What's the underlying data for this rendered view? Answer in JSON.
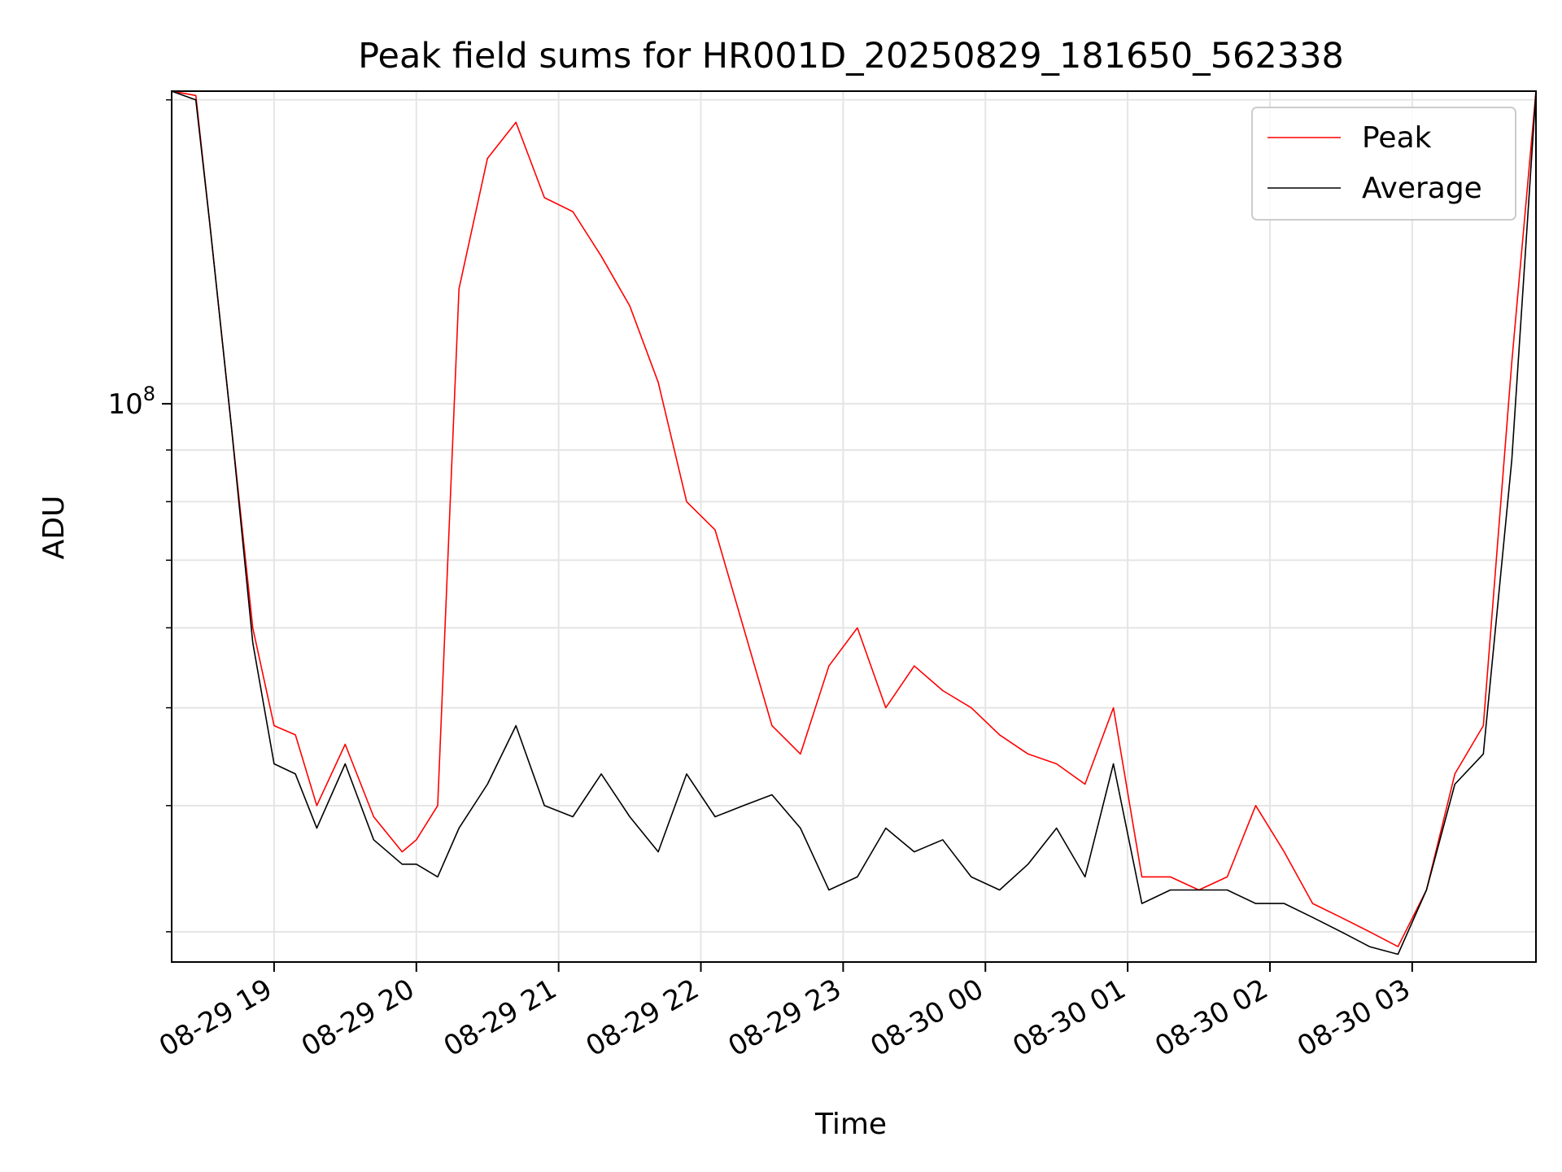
{
  "chart_data": {
    "type": "line",
    "title": "Peak field sums for HR001D_20250829_181650_562338",
    "xlabel": "Time",
    "ylabel": "ADU",
    "yscale": "log",
    "ylim": [
      28000000,
      204000000
    ],
    "xlim_hours": [
      18.28,
      27.87
    ],
    "x_ticks": [
      {
        "label": "08-29 19",
        "hour": 19
      },
      {
        "label": "08-29 20",
        "hour": 20
      },
      {
        "label": "08-29 21",
        "hour": 21
      },
      {
        "label": "08-29 22",
        "hour": 22
      },
      {
        "label": "08-29 23",
        "hour": 23
      },
      {
        "label": "08-30 00",
        "hour": 24
      },
      {
        "label": "08-30 01",
        "hour": 25
      },
      {
        "label": "08-30 02",
        "hour": 26
      },
      {
        "label": "08-30 03",
        "hour": 27
      }
    ],
    "y_major_ticks": [
      {
        "base": "10",
        "exp": "8",
        "value": 100000000
      }
    ],
    "y_minor_ticks": [
      30000000,
      40000000,
      50000000,
      60000000,
      70000000,
      80000000,
      90000000,
      200000000
    ],
    "grid": true,
    "legend_position": "upper-right",
    "series": [
      {
        "name": "Peak",
        "color": "#ff0000",
        "x_hours": [
          18.28,
          18.45,
          18.55,
          18.7,
          18.85,
          19.0,
          19.15,
          19.3,
          19.5,
          19.7,
          19.9,
          20.0,
          20.15,
          20.3,
          20.5,
          20.7,
          20.9,
          21.1,
          21.3,
          21.5,
          21.7,
          21.9,
          22.1,
          22.3,
          22.5,
          22.7,
          22.9,
          23.1,
          23.3,
          23.5,
          23.7,
          23.9,
          24.1,
          24.3,
          24.5,
          24.7,
          24.9,
          25.1,
          25.3,
          25.5,
          25.7,
          25.9,
          26.1,
          26.3,
          26.5,
          26.7,
          26.9,
          27.1,
          27.3,
          27.5,
          27.7,
          27.87
        ],
        "values": [
          204000000,
          202000000,
          150000000,
          95000000,
          60000000,
          48000000,
          47000000,
          40000000,
          46000000,
          39000000,
          36000000,
          37000000,
          40000000,
          130000000,
          175000000,
          190000000,
          160000000,
          155000000,
          140000000,
          125000000,
          105000000,
          80000000,
          75000000,
          60000000,
          48000000,
          45000000,
          55000000,
          60000000,
          50000000,
          55000000,
          52000000,
          50000000,
          47000000,
          45000000,
          44000000,
          42000000,
          50000000,
          34000000,
          34000000,
          33000000,
          34000000,
          40000000,
          36000000,
          32000000,
          31000000,
          30000000,
          29000000,
          33000000,
          43000000,
          48000000,
          110000000,
          204000000
        ]
      },
      {
        "name": "Average",
        "color": "#000000",
        "x_hours": [
          18.28,
          18.45,
          18.55,
          18.7,
          18.85,
          19.0,
          19.15,
          19.3,
          19.5,
          19.7,
          19.9,
          20.0,
          20.15,
          20.3,
          20.5,
          20.7,
          20.9,
          21.1,
          21.3,
          21.5,
          21.7,
          21.9,
          22.1,
          22.3,
          22.5,
          22.7,
          22.9,
          23.1,
          23.3,
          23.5,
          23.7,
          23.9,
          24.1,
          24.3,
          24.5,
          24.7,
          24.9,
          25.1,
          25.3,
          25.5,
          25.7,
          25.9,
          26.1,
          26.3,
          26.5,
          26.7,
          26.9,
          27.1,
          27.3,
          27.5,
          27.7,
          27.87
        ],
        "values": [
          204000000,
          200000000,
          150000000,
          95000000,
          58000000,
          44000000,
          43000000,
          38000000,
          44000000,
          37000000,
          35000000,
          35000000,
          34000000,
          38000000,
          42000000,
          48000000,
          40000000,
          39000000,
          43000000,
          39000000,
          36000000,
          43000000,
          39000000,
          40000000,
          41000000,
          38000000,
          33000000,
          34000000,
          38000000,
          36000000,
          37000000,
          34000000,
          33000000,
          35000000,
          38000000,
          34000000,
          44000000,
          32000000,
          33000000,
          33000000,
          33000000,
          32000000,
          32000000,
          31000000,
          30000000,
          29000000,
          28500000,
          33000000,
          42000000,
          45000000,
          88000000,
          204000000
        ]
      }
    ]
  }
}
